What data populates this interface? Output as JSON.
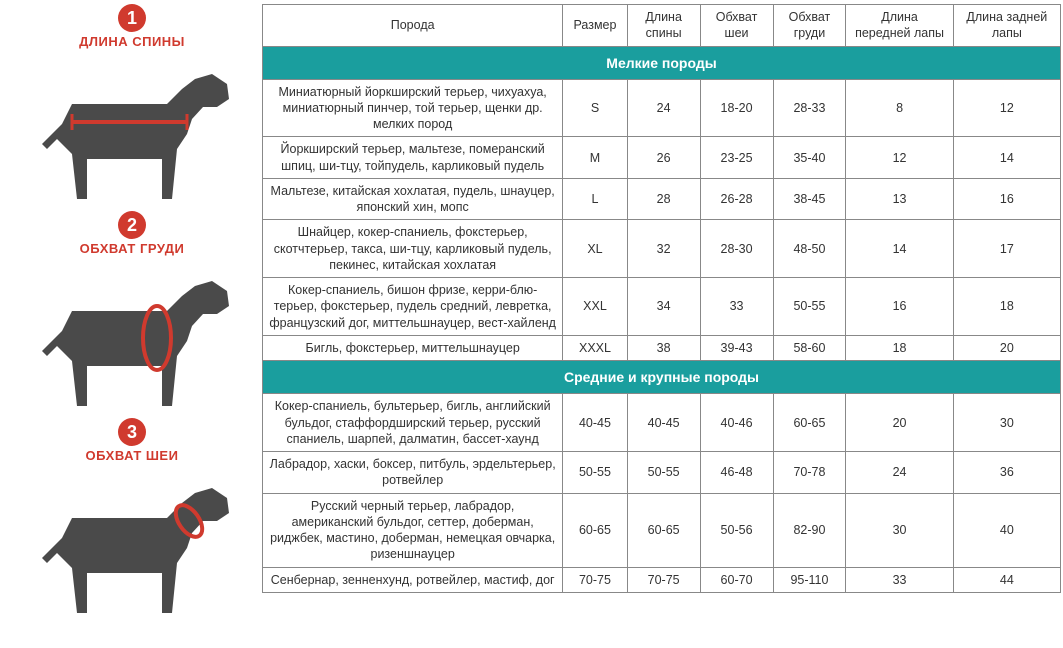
{
  "colors": {
    "accent_red": "#d03a2e",
    "section_teal": "#1a9e9e",
    "dog_fill": "#4a4a4a",
    "line_measure": "#d03a2e",
    "border": "#888888"
  },
  "diagrams": [
    {
      "num": "1",
      "label": "ДЛИНА СПИНЫ"
    },
    {
      "num": "2",
      "label": "ОБХВАТ ГРУДИ"
    },
    {
      "num": "3",
      "label": "ОБХВАТ ШЕИ"
    }
  ],
  "table": {
    "headers": [
      "Порода",
      "Размер",
      "Длина спины",
      "Обхват шеи",
      "Обхват груди",
      "Длина передней лапы",
      "Длина задней лапы"
    ],
    "sections": [
      {
        "title": "Мелкие породы",
        "rows": [
          {
            "breed": "Миниатюрный йоркширский терьер, чихуахуа, миниатюрный пинчер, той терьер, щенки др. мелких пород",
            "size": "S",
            "back": "24",
            "neck": "18-20",
            "chest": "28-33",
            "front": "8",
            "rear": "12"
          },
          {
            "breed": "Йоркширский терьер, мальтезе, померанский шпиц, ши-тцу, тойпудель, карликовый пудель",
            "size": "M",
            "back": "26",
            "neck": "23-25",
            "chest": "35-40",
            "front": "12",
            "rear": "14"
          },
          {
            "breed": "Мальтезе, китайская хохлатая, пудель, шнауцер, японский хин, мопс",
            "size": "L",
            "back": "28",
            "neck": "26-28",
            "chest": "38-45",
            "front": "13",
            "rear": "16"
          },
          {
            "breed": "Шнайцер, кокер-спаниель, фокстерьер, скотчтерьер, такса, ши-тцу, карликовый пудель, пекинес, китайская хохлатая",
            "size": "XL",
            "back": "32",
            "neck": "28-30",
            "chest": "48-50",
            "front": "14",
            "rear": "17"
          },
          {
            "breed": "Кокер-спаниель, бишон фризе, керри-блю-терьер, фокстерьер, пудель средний, левретка, французский дог, миттельшнауцер, вест-хайленд",
            "size": "XXL",
            "back": "34",
            "neck": "33",
            "chest": "50-55",
            "front": "16",
            "rear": "18"
          },
          {
            "breed": "Бигль, фокстерьер, миттельшнауцер",
            "size": "XXXL",
            "back": "38",
            "neck": "39-43",
            "chest": "58-60",
            "front": "18",
            "rear": "20"
          }
        ]
      },
      {
        "title": "Средние и крупные породы",
        "rows": [
          {
            "breed": "Кокер-спаниель, бультерьер, бигль, английский бульдог, стаффордширский терьер, русский спаниель, шарпей, далматин, бассет-хаунд",
            "size": "40-45",
            "back": "40-45",
            "neck": "40-46",
            "chest": "60-65",
            "front": "20",
            "rear": "30"
          },
          {
            "breed": "Лабрадор, хаски, боксер, питбуль, эрдельтерьер, ротвейлер",
            "size": "50-55",
            "back": "50-55",
            "neck": "46-48",
            "chest": "70-78",
            "front": "24",
            "rear": "36"
          },
          {
            "breed": "Русский черный терьер, лабрадор, американский бульдог, сеттер, доберман, риджбек, мастино, доберман, немецкая овчарка, ризеншнауцер",
            "size": "60-65",
            "back": "60-65",
            "neck": "50-56",
            "chest": "82-90",
            "front": "30",
            "rear": "40"
          },
          {
            "breed": "Сенбернар, зенненхунд, ротвейлер, мастиф, дог",
            "size": "70-75",
            "back": "70-75",
            "neck": "60-70",
            "chest": "95-110",
            "front": "33",
            "rear": "44"
          }
        ]
      }
    ]
  }
}
